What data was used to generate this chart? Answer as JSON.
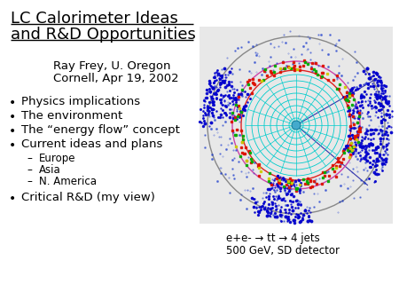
{
  "title_line1": "LC Calorimeter Ideas",
  "title_line2": "and R&D Opportunities",
  "author_line1": "Ray Frey, U. Oregon",
  "author_line2": "Cornell, Apr 19, 2002",
  "bullet_items": [
    "Physics implications",
    "The environment",
    "The “energy flow” concept",
    "Current ideas and plans"
  ],
  "sub_items": [
    "Europe",
    "Asia",
    "N. America"
  ],
  "last_bullet": "Critical R&D (my view)",
  "caption_line1": "e+e- → tt → 4 jets",
  "caption_line2": "500 GeV, SD detector",
  "text_color": "#000000",
  "title_fontsize": 13,
  "author_fontsize": 9.5,
  "bullet_fontsize": 9.5,
  "sub_fontsize": 8.5,
  "caption_fontsize": 8.5
}
